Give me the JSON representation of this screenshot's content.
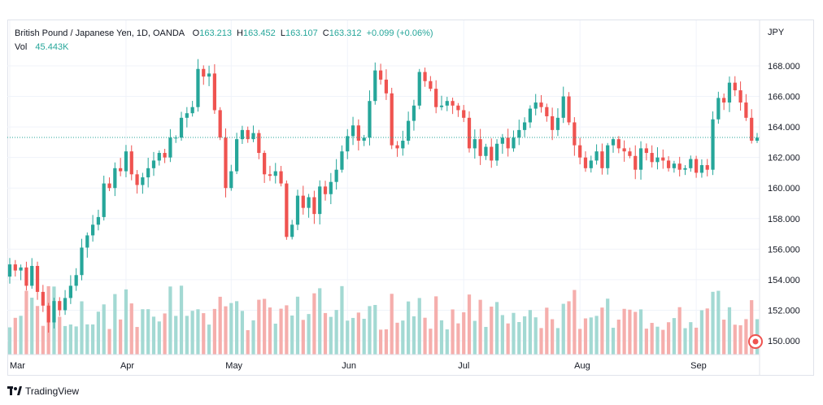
{
  "legend": {
    "symbol": "British Pound / Japanese Yen, 1D, OANDA",
    "open_label": "O",
    "open": "163.213",
    "high_label": "H",
    "high": "163.452",
    "low_label": "L",
    "low": "163.107",
    "close_label": "C",
    "close": "163.312",
    "change": "+0.099 (+0.06%)",
    "vol_label": "Vol",
    "vol": "45.443K"
  },
  "currency": "JPY",
  "footer": {
    "brand": "TradingView"
  },
  "colors": {
    "up": "#26a69a",
    "down": "#ef5350",
    "up_volume": "#a3d9d3",
    "down_volume": "#f5aeac",
    "grid": "#f0f3fa",
    "last_price_line": "#26a69a",
    "marker": "#ef5350"
  },
  "chart_data": {
    "type": "candlestick",
    "title": "British Pound / Japanese Yen, 1D, OANDA",
    "y_axis_label": "JPY",
    "y_ticks": [
      "168.000",
      "166.000",
      "164.000",
      "162.000",
      "160.000",
      "158.000",
      "156.000",
      "154.000",
      "152.000",
      "150.000"
    ],
    "y_range": [
      149.4,
      169.1
    ],
    "x_ticks": [
      "Mar",
      "Apr",
      "May",
      "Jun",
      "Jul",
      "Aug",
      "Sep"
    ],
    "last_close": 163.312,
    "grid": true,
    "candles_close": [
      155.0,
      154.6,
      154.8,
      153.6,
      154.9,
      153.2,
      152.3,
      151.2,
      152.6,
      152.0,
      152.8,
      153.6,
      154.3,
      156.1,
      156.9,
      157.6,
      158.1,
      160.3,
      160.0,
      161.3,
      161.1,
      162.4,
      160.9,
      160.2,
      160.7,
      161.3,
      161.8,
      162.3,
      162.0,
      163.3,
      163.3,
      164.6,
      164.9,
      165.3,
      167.8,
      167.3,
      167.5,
      165.1,
      163.3,
      160.0,
      161.1,
      163.2,
      163.8,
      163.2,
      163.6,
      162.3,
      160.9,
      160.8,
      161.1,
      160.3,
      156.8,
      157.6,
      159.5,
      158.7,
      159.4,
      158.3,
      160.1,
      159.6,
      160.4,
      161.2,
      162.4,
      163.4,
      164.1,
      163.1,
      163.3,
      165.7,
      167.7,
      167.1,
      166.2,
      162.8,
      162.6,
      163.1,
      164.4,
      165.4,
      167.6,
      167.0,
      166.5,
      165.3,
      165.4,
      165.7,
      165.4,
      165.1,
      164.6,
      162.6,
      163.2,
      162.1,
      162.7,
      161.8,
      162.9,
      163.3,
      162.6,
      163.3,
      163.8,
      164.3,
      165.2,
      165.6,
      165.3,
      164.7,
      163.8,
      164.6,
      166.0,
      164.3,
      162.8,
      162.0,
      161.3,
      161.8,
      162.4,
      161.3,
      162.8,
      163.2,
      162.6,
      162.4,
      162.1,
      161.2,
      162.6,
      162.3,
      161.7,
      162.0,
      161.8,
      161.3,
      161.6,
      161.2,
      161.3,
      161.9,
      161.0,
      161.5,
      161.2,
      164.5,
      165.9,
      165.6,
      166.9,
      166.4,
      165.6,
      164.6,
      163.1,
      163.3
    ],
    "volume_note": "Volume histogram at bottom of chart (relative bars, up = teal, down = red)"
  }
}
